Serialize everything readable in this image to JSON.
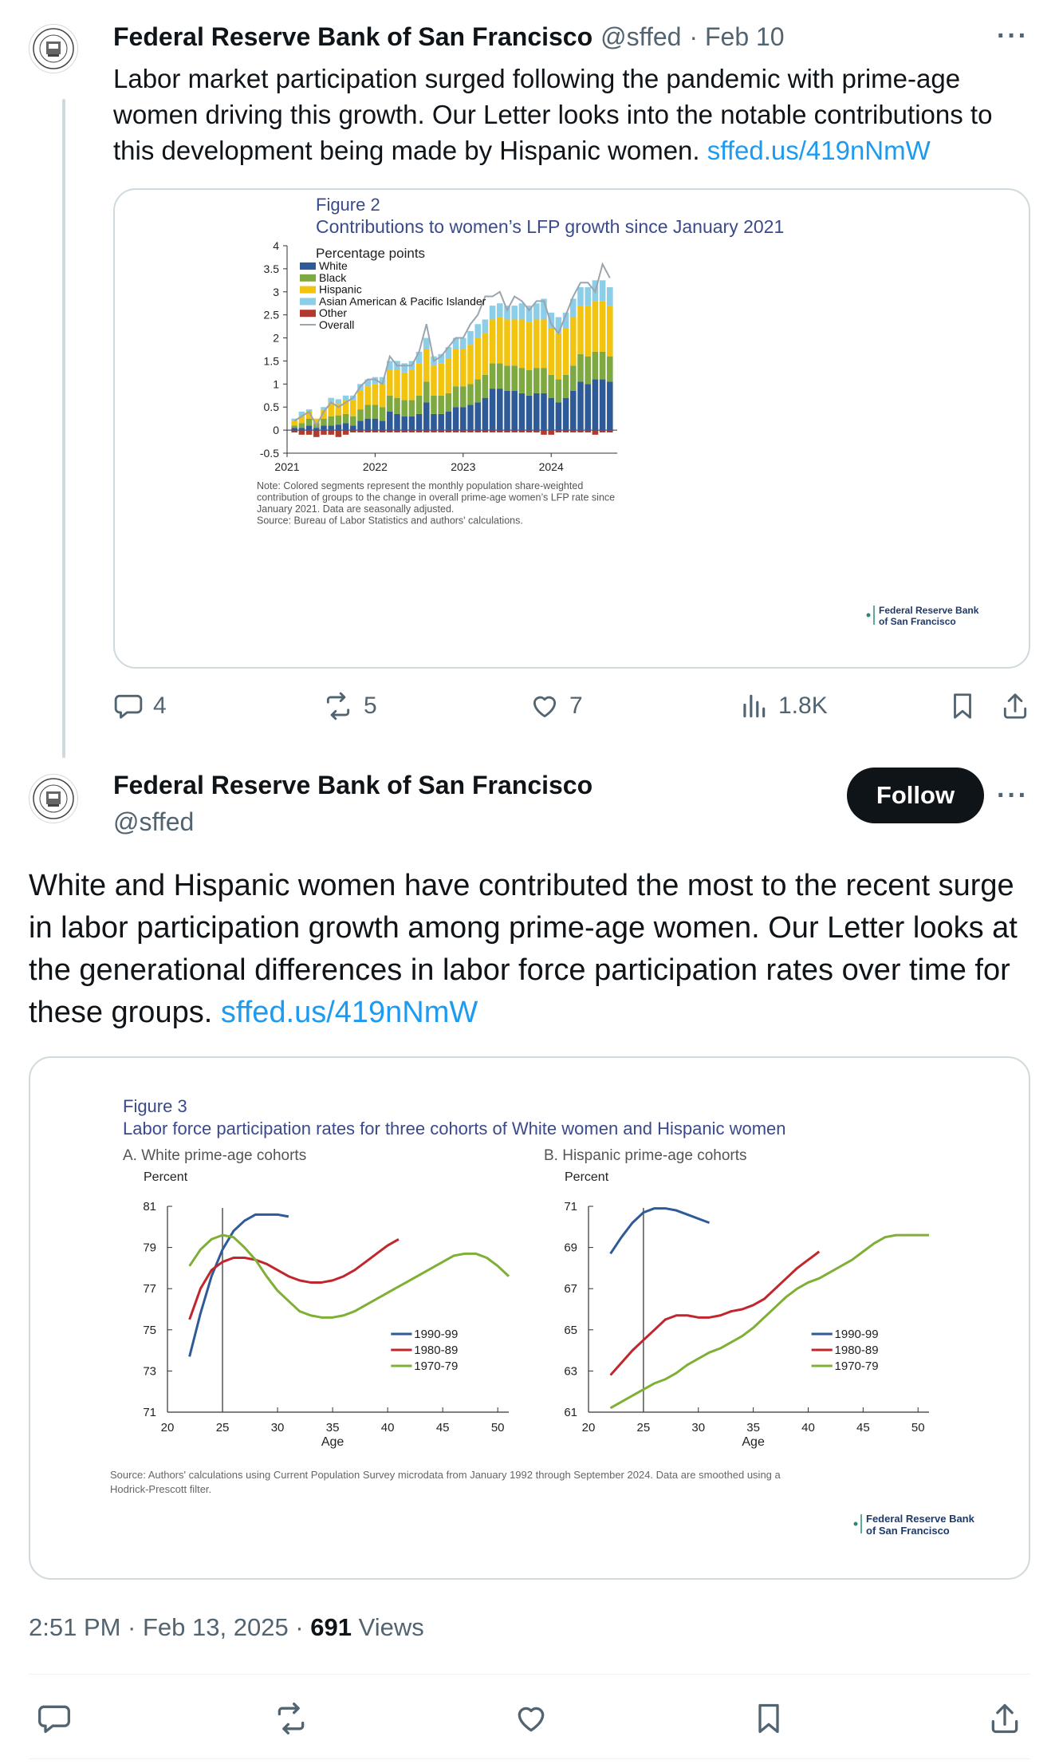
{
  "tweet1": {
    "author_name": "Federal Reserve Bank of San Francisco",
    "handle": "@sffed",
    "date": "· Feb 10",
    "text": "Labor market participation surged following the pandemic with prime-age women driving this growth. Our Letter looks into the notable contributions to this development being made by Hispanic women.",
    "link": "sffed.us/419nNmW",
    "actions": {
      "replies": "4",
      "reposts": "5",
      "likes": "7",
      "views": "1.8K"
    }
  },
  "tweet2": {
    "author_name": "Federal Reserve Bank of San Francisco",
    "handle": "@sffed",
    "follow_label": "Follow",
    "text": "White and Hispanic women have contributed the most to the recent surge in labor participation growth among prime-age women. Our Letter looks at the generational differences in labor force participation rates over time for these groups.",
    "link": "sffed.us/419nNmW",
    "timestamp": "2:51 PM · Feb 13, 2025 ·",
    "views_count": "691",
    "views_label": "Views"
  },
  "figure2": {
    "figure_label": "Figure 2",
    "title": "Contributions to women’s LFP growth since January 2021",
    "unit_label": "Percentage points",
    "note_lines": [
      "Note: Colored segments represent the monthly population share-weighted",
      "contribution of groups to the change in overall prime-age women’s LFP rate since",
      "January 2021. Data are seasonally adjusted.",
      "Source: Bureau of Labor Statistics and authors' calculations."
    ],
    "logo_lines": [
      "Federal Reserve Bank",
      "of San Francisco"
    ]
  },
  "figure3": {
    "figure_label": "Figure 3",
    "title": "Labor force participation rates for three cohorts of White women and Hispanic women",
    "source_lines": [
      "Source: Authors' calculations using Current Population Survey microdata from January 1992 through September 2024. Data are smoothed using a",
      "Hodrick-Prescott filter."
    ],
    "logo_lines": [
      "Federal Reserve Bank",
      "of San Francisco"
    ]
  },
  "chart_data": [
    {
      "type": "bar",
      "title": "Contributions to women’s LFP growth since January 2021",
      "ylabel": "Percentage points",
      "ylim": [
        -0.5,
        4
      ],
      "yticks": [
        "4",
        "3.5",
        "3",
        "2.5",
        "2",
        "1.5",
        "1",
        "0.5",
        "0",
        "-0.5"
      ],
      "xticks": [
        "2021",
        "2022",
        "2023",
        "2024"
      ],
      "stacked": true,
      "legend_position": "top-left",
      "x": [
        "2021-02",
        "2021-03",
        "2021-04",
        "2021-05",
        "2021-06",
        "2021-07",
        "2021-08",
        "2021-09",
        "2021-10",
        "2021-11",
        "2021-12",
        "2022-01",
        "2022-02",
        "2022-03",
        "2022-04",
        "2022-05",
        "2022-06",
        "2022-07",
        "2022-08",
        "2022-09",
        "2022-10",
        "2022-11",
        "2022-12",
        "2023-01",
        "2023-02",
        "2023-03",
        "2023-04",
        "2023-05",
        "2023-06",
        "2023-07",
        "2023-08",
        "2023-09",
        "2023-10",
        "2023-11",
        "2023-12",
        "2024-01",
        "2024-02",
        "2024-03",
        "2024-04",
        "2024-05",
        "2024-06",
        "2024-07",
        "2024-08",
        "2024-09"
      ],
      "series": [
        {
          "name": "White",
          "color": "#2e5a98",
          "values": [
            0.05,
            0.05,
            0.1,
            0.05,
            0.1,
            0.1,
            0.12,
            0.15,
            0.1,
            0.2,
            0.25,
            0.25,
            0.2,
            0.4,
            0.35,
            0.3,
            0.3,
            0.35,
            0.6,
            0.35,
            0.35,
            0.4,
            0.5,
            0.5,
            0.55,
            0.6,
            0.7,
            0.9,
            0.9,
            0.85,
            0.85,
            0.8,
            0.75,
            0.8,
            0.8,
            0.7,
            0.6,
            0.7,
            0.85,
            1.05,
            1.0,
            1.1,
            1.1,
            1.05
          ]
        },
        {
          "name": "Black",
          "color": "#7da940",
          "values": [
            0.05,
            0.1,
            0.15,
            0.1,
            0.15,
            0.2,
            0.2,
            0.2,
            0.2,
            0.25,
            0.3,
            0.3,
            0.3,
            0.35,
            0.35,
            0.35,
            0.35,
            0.4,
            0.45,
            0.4,
            0.4,
            0.4,
            0.45,
            0.45,
            0.45,
            0.5,
            0.5,
            0.55,
            0.55,
            0.55,
            0.55,
            0.55,
            0.55,
            0.55,
            0.55,
            0.5,
            0.5,
            0.5,
            0.55,
            0.6,
            0.6,
            0.6,
            0.6,
            0.55
          ]
        },
        {
          "name": "Hispanic",
          "color": "#f2c30f",
          "values": [
            0.1,
            0.15,
            0.15,
            0.1,
            0.2,
            0.3,
            0.25,
            0.3,
            0.35,
            0.4,
            0.4,
            0.45,
            0.5,
            0.55,
            0.6,
            0.6,
            0.65,
            0.7,
            0.7,
            0.65,
            0.7,
            0.75,
            0.8,
            0.8,
            0.85,
            0.9,
            0.9,
            0.95,
            1.0,
            1.0,
            1.0,
            1.05,
            1.05,
            1.05,
            1.05,
            1.0,
            1.0,
            1.0,
            1.05,
            1.05,
            1.1,
            1.1,
            1.1,
            1.1
          ]
        },
        {
          "name": "Asian American & Pacific Islander",
          "color": "#8ccde8",
          "values": [
            0.05,
            0.1,
            0.05,
            0.0,
            0.05,
            0.1,
            0.1,
            0.1,
            0.1,
            0.15,
            0.15,
            0.15,
            0.15,
            0.2,
            0.2,
            0.2,
            0.2,
            0.25,
            0.25,
            0.2,
            0.2,
            0.25,
            0.25,
            0.25,
            0.3,
            0.3,
            0.3,
            0.3,
            0.3,
            0.3,
            0.3,
            0.35,
            0.35,
            0.35,
            0.45,
            0.35,
            0.35,
            0.35,
            0.4,
            0.4,
            0.4,
            0.45,
            0.45,
            0.4
          ]
        },
        {
          "name": "Other",
          "color": "#b03a2e",
          "values": [
            -0.05,
            -0.1,
            -0.1,
            -0.15,
            -0.1,
            -0.1,
            -0.15,
            -0.1,
            -0.05,
            -0.05,
            -0.05,
            -0.05,
            -0.05,
            -0.05,
            -0.05,
            -0.05,
            -0.05,
            -0.05,
            -0.05,
            -0.05,
            -0.05,
            -0.05,
            -0.05,
            -0.05,
            -0.05,
            -0.05,
            -0.05,
            -0.05,
            -0.05,
            -0.05,
            -0.05,
            -0.05,
            -0.05,
            -0.05,
            -0.1,
            -0.1,
            -0.05,
            -0.05,
            -0.05,
            -0.05,
            -0.05,
            -0.1,
            -0.05,
            -0.05
          ]
        }
      ],
      "overall": {
        "name": "Overall",
        "color": "#9aa5ae",
        "values": [
          0.2,
          0.3,
          0.4,
          0.1,
          0.4,
          0.6,
          0.5,
          0.6,
          0.7,
          0.95,
          1.1,
          1.1,
          1.0,
          1.6,
          1.4,
          1.4,
          1.4,
          1.7,
          2.3,
          1.5,
          1.6,
          1.8,
          2.0,
          2.0,
          2.3,
          2.5,
          2.9,
          2.9,
          3.0,
          2.6,
          2.9,
          2.8,
          2.6,
          2.8,
          2.8,
          2.3,
          2.1,
          2.5,
          2.9,
          3.2,
          3.2,
          3.0,
          3.6,
          3.3
        ]
      }
    },
    {
      "type": "line",
      "title": "A. White prime-age cohorts",
      "ylabel": "Percent",
      "xlabel": "Age",
      "ylim": [
        71,
        81
      ],
      "xlim": [
        20,
        51
      ],
      "yticks": [
        "81",
        "79",
        "77",
        "75",
        "73",
        "71"
      ],
      "xticks": [
        "20",
        "25",
        "30",
        "35",
        "40",
        "45",
        "50"
      ],
      "reference_line_x": 25,
      "legend_position": "center-right",
      "series": [
        {
          "name": "1990-99",
          "color": "#2e5a98",
          "x": [
            22,
            23,
            24,
            25,
            26,
            27,
            28,
            29,
            30,
            31
          ],
          "y": [
            73.7,
            75.8,
            77.6,
            78.9,
            79.8,
            80.3,
            80.6,
            80.6,
            80.6,
            80.5
          ]
        },
        {
          "name": "1980-89",
          "color": "#c0262b",
          "x": [
            22,
            23,
            24,
            25,
            26,
            27,
            28,
            29,
            30,
            31,
            32,
            33,
            34,
            35,
            36,
            37,
            38,
            39,
            40,
            41
          ],
          "y": [
            75.5,
            77.0,
            77.9,
            78.3,
            78.5,
            78.5,
            78.4,
            78.2,
            77.9,
            77.6,
            77.4,
            77.3,
            77.3,
            77.4,
            77.6,
            77.9,
            78.3,
            78.7,
            79.1,
            79.4
          ]
        },
        {
          "name": "1970-79",
          "color": "#7fb036",
          "x": [
            22,
            23,
            24,
            25,
            26,
            27,
            28,
            29,
            30,
            31,
            32,
            33,
            34,
            35,
            36,
            37,
            38,
            39,
            40,
            41,
            42,
            43,
            44,
            45,
            46,
            47,
            48,
            49,
            50,
            51
          ],
          "y": [
            78.1,
            78.9,
            79.4,
            79.6,
            79.5,
            79.0,
            78.4,
            77.6,
            76.9,
            76.4,
            75.9,
            75.7,
            75.6,
            75.6,
            75.7,
            75.9,
            76.2,
            76.5,
            76.8,
            77.1,
            77.4,
            77.7,
            78.0,
            78.3,
            78.6,
            78.7,
            78.7,
            78.5,
            78.1,
            77.6
          ]
        }
      ]
    },
    {
      "type": "line",
      "title": "B. Hispanic prime-age cohorts",
      "ylabel": "Percent",
      "xlabel": "Age",
      "ylim": [
        61,
        71
      ],
      "xlim": [
        20,
        51
      ],
      "yticks": [
        "71",
        "69",
        "67",
        "65",
        "63",
        "61"
      ],
      "xticks": [
        "20",
        "25",
        "30",
        "35",
        "40",
        "45",
        "50"
      ],
      "reference_line_x": 25,
      "legend_position": "center-right",
      "series": [
        {
          "name": "1990-99",
          "color": "#2e5a98",
          "x": [
            22,
            23,
            24,
            25,
            26,
            27,
            28,
            29,
            30,
            31
          ],
          "y": [
            68.7,
            69.5,
            70.2,
            70.7,
            70.9,
            70.9,
            70.8,
            70.6,
            70.4,
            70.2
          ]
        },
        {
          "name": "1980-89",
          "color": "#c0262b",
          "x": [
            22,
            23,
            24,
            25,
            26,
            27,
            28,
            29,
            30,
            31,
            32,
            33,
            34,
            35,
            36,
            37,
            38,
            39,
            40,
            41
          ],
          "y": [
            62.8,
            63.4,
            64.0,
            64.5,
            65.0,
            65.5,
            65.7,
            65.7,
            65.6,
            65.6,
            65.7,
            65.9,
            66.0,
            66.2,
            66.5,
            67.0,
            67.5,
            68.0,
            68.4,
            68.8
          ]
        },
        {
          "name": "1970-79",
          "color": "#7fb036",
          "x": [
            22,
            23,
            24,
            25,
            26,
            27,
            28,
            29,
            30,
            31,
            32,
            33,
            34,
            35,
            36,
            37,
            38,
            39,
            40,
            41,
            42,
            43,
            44,
            45,
            46,
            47,
            48,
            49,
            50,
            51
          ],
          "y": [
            61.2,
            61.5,
            61.8,
            62.1,
            62.4,
            62.6,
            62.9,
            63.3,
            63.6,
            63.9,
            64.1,
            64.4,
            64.7,
            65.1,
            65.6,
            66.1,
            66.6,
            67.0,
            67.3,
            67.5,
            67.8,
            68.1,
            68.4,
            68.8,
            69.2,
            69.5,
            69.6,
            69.6,
            69.6,
            69.6
          ]
        }
      ]
    }
  ]
}
